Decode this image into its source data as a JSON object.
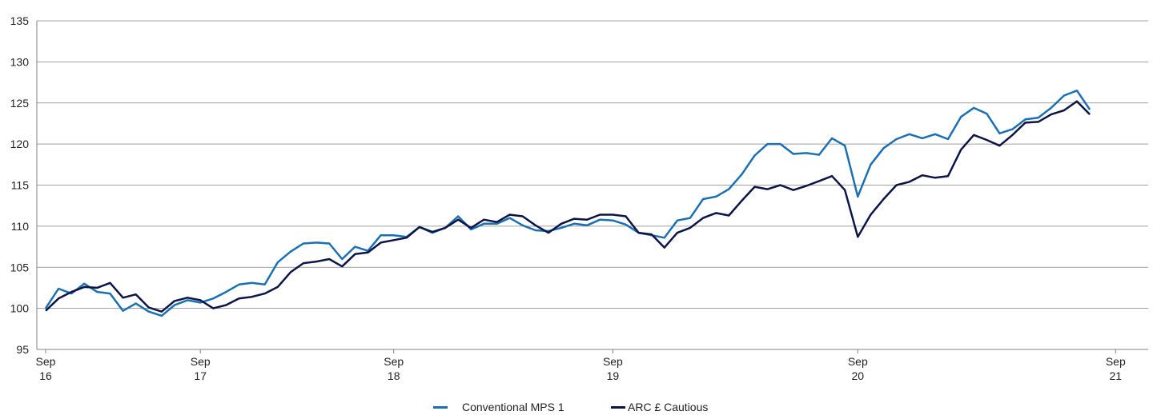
{
  "chart_data": {
    "type": "line",
    "title": "",
    "xlabel": "",
    "ylabel": "",
    "ylim": [
      95,
      135
    ],
    "yticks": [
      "95",
      "100",
      "105",
      "110",
      "115",
      "120",
      "125",
      "130",
      "135"
    ],
    "xticks": [
      {
        "line1": "Sep",
        "line2": "16",
        "index": 0
      },
      {
        "line1": "Sep",
        "line2": "17",
        "index": 12
      },
      {
        "line1": "Sep",
        "line2": "18",
        "index": 27
      },
      {
        "line1": "Sep",
        "line2": "19",
        "index": 44
      },
      {
        "line1": "Sep",
        "line2": "20",
        "index": 63
      },
      {
        "line1": "Sep",
        "line2": "21",
        "index": 83
      }
    ],
    "grid": true,
    "legend": "bottom-center",
    "series": [
      {
        "name": "Conventional MPS 1",
        "color": "#1b6fb3",
        "values": [
          100.0,
          102.4,
          101.8,
          103.0,
          102.0,
          101.8,
          99.7,
          100.6,
          99.6,
          99.1,
          100.4,
          101.0,
          100.7,
          101.2,
          102.0,
          102.9,
          103.1,
          102.9,
          105.6,
          106.9,
          107.9,
          108.0,
          107.9,
          106.0,
          107.5,
          107.0,
          108.9,
          108.9,
          108.7,
          109.9,
          109.2,
          109.8,
          111.2,
          109.6,
          110.3,
          110.3,
          111.0,
          110.1,
          109.5,
          109.4,
          109.8,
          110.3,
          110.1,
          110.8,
          110.7,
          110.2,
          109.2,
          108.9,
          108.6,
          110.7,
          111.0,
          113.3,
          113.6,
          114.5,
          116.3,
          118.6,
          120.0,
          120.0,
          118.8,
          118.9,
          118.7,
          120.7,
          119.8,
          113.6,
          117.5,
          119.5,
          120.6,
          121.2,
          120.7,
          121.2,
          120.6,
          123.3,
          124.4,
          123.7,
          121.3,
          121.8,
          123.0,
          123.2,
          124.4,
          125.9,
          126.5,
          124.2
        ]
      },
      {
        "name": "ARC £ Cautious",
        "color": "#0d1546",
        "values": [
          99.7,
          101.2,
          102.0,
          102.6,
          102.5,
          103.1,
          101.3,
          101.7,
          100.1,
          99.6,
          100.9,
          101.3,
          101.0,
          100.0,
          100.4,
          101.2,
          101.4,
          101.8,
          102.6,
          104.4,
          105.5,
          105.7,
          106.0,
          105.1,
          106.6,
          106.8,
          108.0,
          108.3,
          108.6,
          109.9,
          109.3,
          109.8,
          110.8,
          109.8,
          110.8,
          110.5,
          111.4,
          111.2,
          110.1,
          109.2,
          110.3,
          110.9,
          110.8,
          111.4,
          111.4,
          111.2,
          109.2,
          109.0,
          107.4,
          109.2,
          109.8,
          111.0,
          111.6,
          111.3,
          113.1,
          114.8,
          114.5,
          115.0,
          114.4,
          114.9,
          115.5,
          116.1,
          114.4,
          108.7,
          111.4,
          113.3,
          115.0,
          115.4,
          116.2,
          115.9,
          116.1,
          119.3,
          121.1,
          120.5,
          119.8,
          121.1,
          122.6,
          122.7,
          123.6,
          124.1,
          125.2,
          123.6
        ]
      }
    ]
  }
}
